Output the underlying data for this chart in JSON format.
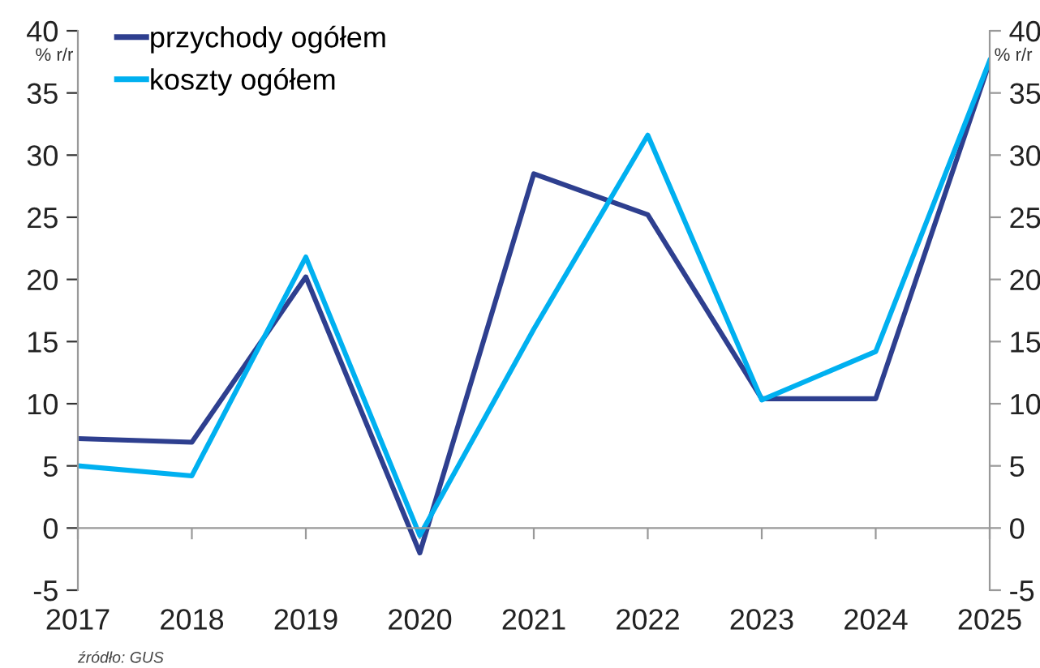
{
  "chart_data": {
    "type": "line",
    "categories": [
      "2017",
      "2018",
      "2019",
      "2020",
      "2021",
      "2022",
      "2023",
      "2024",
      "2025"
    ],
    "series": [
      {
        "name": "przychody ogółem",
        "color": "#2e3f8f",
        "values": [
          7.2,
          6.9,
          20.2,
          -2.0,
          28.5,
          25.2,
          10.4,
          10.4,
          37.5
        ]
      },
      {
        "name": "koszty ogółem",
        "color": "#00b0f0",
        "values": [
          5.0,
          4.2,
          21.8,
          -0.6,
          16.0,
          31.6,
          10.3,
          14.2,
          37.6
        ]
      }
    ],
    "ylabel": "% r/r",
    "y2label": "% r/r",
    "ylim": [
      -5,
      40
    ],
    "yticks": [
      -5,
      0,
      5,
      10,
      15,
      20,
      25,
      30,
      35,
      40
    ],
    "y2lim": [
      -5,
      40
    ],
    "y2ticks": [
      -5,
      0,
      5,
      10,
      15,
      20,
      25,
      30,
      35,
      40
    ],
    "legend": "top left",
    "marker": "none",
    "line_style": "solid",
    "annotations": [
      "źródło: GUS"
    ]
  }
}
